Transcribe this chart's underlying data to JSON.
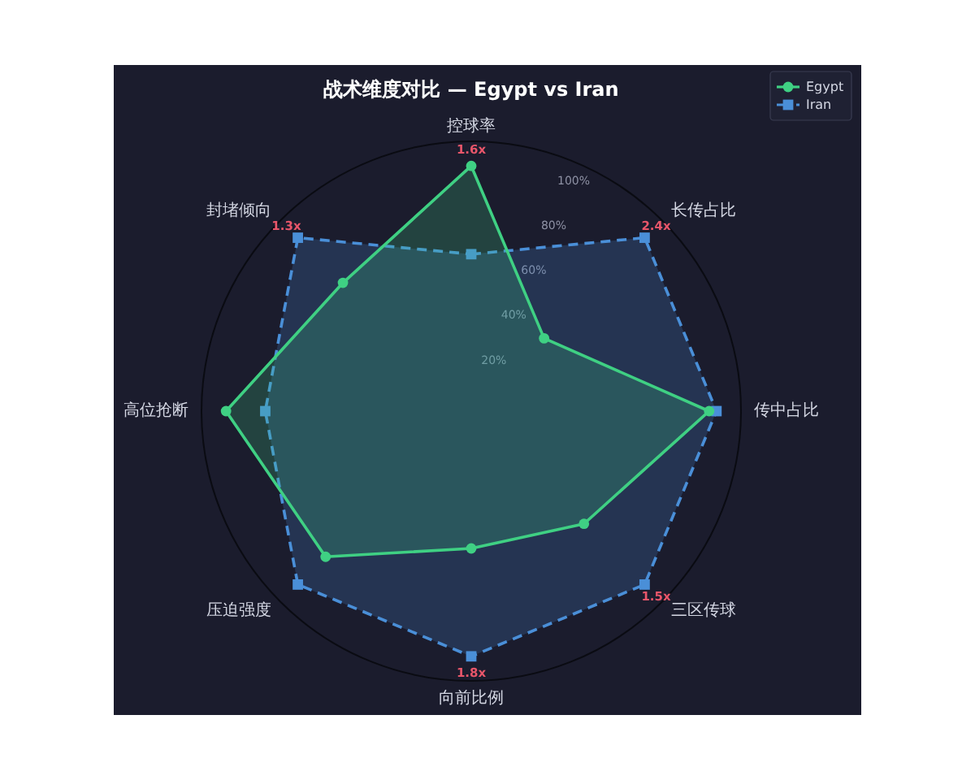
{
  "chart_data": {
    "type": "radar",
    "title": "战术维度对比 — Egypt vs Iran",
    "categories": [
      "控球率",
      "长传占比",
      "传中占比",
      "三区传球",
      "向前比例",
      "压迫强度",
      "高位抢断",
      "封堵倾向"
    ],
    "series": [
      {
        "name": "Egypt",
        "color": "#3fd083",
        "values": [
          100,
          42,
          97,
          65,
          56,
          84,
          100,
          74
        ],
        "marker": "circle",
        "line_style": "solid"
      },
      {
        "name": "Iran",
        "color": "#4a8fd8",
        "values": [
          64,
          100,
          100,
          100,
          100,
          100,
          84,
          100
        ],
        "marker": "square",
        "line_style": "dashed"
      }
    ],
    "ylim": [
      0,
      110
    ],
    "yticks": [
      {
        "value": 20,
        "label": "20%"
      },
      {
        "value": 40,
        "label": "40%"
      },
      {
        "value": 60,
        "label": "60%"
      },
      {
        "value": 80,
        "label": "80%"
      },
      {
        "value": 100,
        "label": "100%"
      }
    ],
    "grid": false,
    "legend": "top right",
    "annotations": [
      {
        "text": "1.6x",
        "x": "控球率"
      },
      {
        "text": "2.4x",
        "x": "长传占比"
      },
      {
        "text": "1.5x",
        "x": "三区传球"
      },
      {
        "text": "1.8x",
        "x": "向前比例"
      },
      {
        "text": "1.3x",
        "x": "封堵倾向"
      }
    ]
  }
}
